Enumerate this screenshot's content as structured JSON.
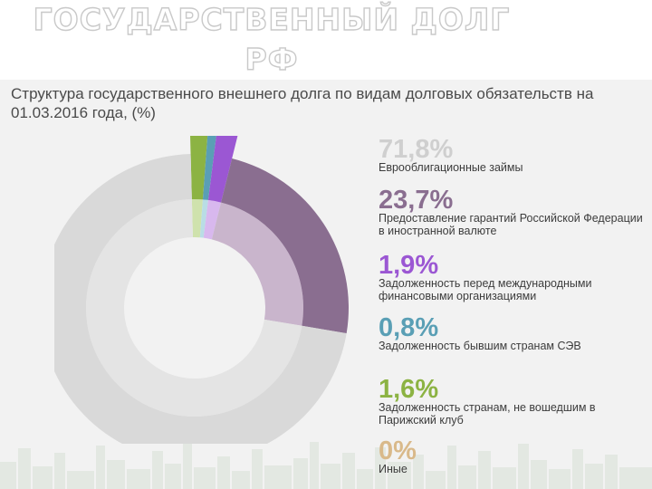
{
  "slide": {
    "title_line1": "ГОСУДАРСТВЕННЫЙ ДОЛГ",
    "title_line2": "РФ"
  },
  "chart_data": {
    "type": "pie",
    "title": "Структура государственного внешнего долга по видам долговых обязательств на 01.03.2016 года, (%)",
    "categories": [
      "Еврооблигационные займы",
      "Предоставление гарантий Российской Федерации в иностранной валюте",
      "Задолженность перед международными финансовыми организациями",
      "Задолженность бывшим странам СЭВ",
      "Задолженность странам, не вошедшим в Парижский клуб",
      "Иные"
    ],
    "values": [
      71.8,
      23.7,
      1.9,
      0.8,
      1.6,
      0
    ],
    "value_labels": [
      "71,8%",
      "23,7%",
      "1,9%",
      "0,8%",
      "1,6%",
      "0%"
    ],
    "colors": [
      "#d9d9d9",
      "#8a6e90",
      "#9b57d3",
      "#5a9fb5",
      "#8cb343",
      "#d9b98a"
    ],
    "inner_colors": [
      "#e4e4e4",
      "#c9b5cc",
      "#d8b8ee",
      "#b9dde5",
      "#cfe2ad",
      "#ecdcc1"
    ],
    "legend_position": "right"
  }
}
